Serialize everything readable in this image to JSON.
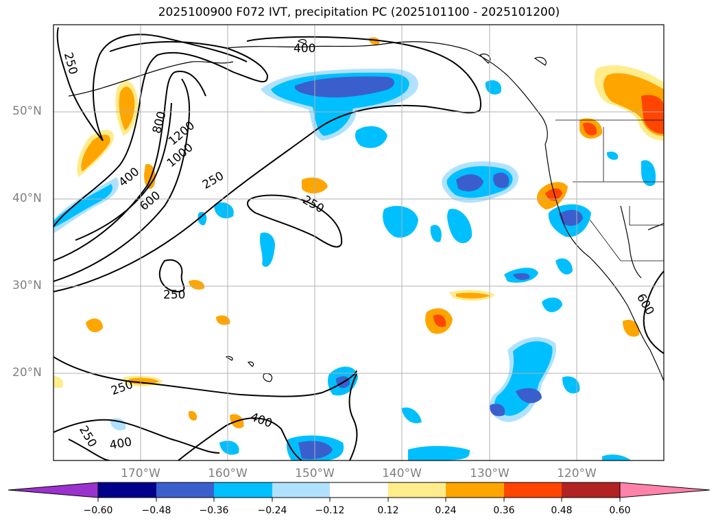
{
  "title": "2025100900 F072 IVT, precipitation PC (2025101100 - 2025101200)",
  "lat_labels": [
    {
      "value": 50,
      "text": "50°N"
    },
    {
      "value": 40,
      "text": "40°N"
    },
    {
      "value": 30,
      "text": "30°N"
    },
    {
      "value": 20,
      "text": "20°N"
    }
  ],
  "lon_labels": [
    {
      "value": -170,
      "text": "170°W"
    },
    {
      "value": -160,
      "text": "160°W"
    },
    {
      "value": -150,
      "text": "150°W"
    },
    {
      "value": -140,
      "text": "140°W"
    },
    {
      "value": -130,
      "text": "130°W"
    },
    {
      "value": -120,
      "text": "120°W"
    }
  ],
  "extent": {
    "lon": [
      -180,
      -110
    ],
    "lat": [
      10,
      60
    ]
  },
  "contour_labels": [
    "250",
    "400",
    "600",
    "800",
    "1000",
    "1200",
    "250",
    "250",
    "250",
    "250",
    "250",
    "400",
    "400",
    "600"
  ],
  "colorbar": {
    "ticks": [
      "−0.60",
      "−0.48",
      "−0.36",
      "−0.24",
      "−0.12",
      "0.12",
      "0.24",
      "0.36",
      "0.48",
      "0.60"
    ],
    "colors": [
      "#9a32cd",
      "#00008b",
      "#3a5fcd",
      "#00bfff",
      "#b0e2ff",
      "#ffffff",
      "#ffec8b",
      "#ffa500",
      "#ff4500",
      "#b22222",
      "#ff82ab"
    ]
  },
  "colors": {
    "neg_strong": "#3a5fcd",
    "neg_mid": "#00bfff",
    "neg_weak": "#b0e2ff",
    "pos_weak": "#ffec8b",
    "pos_mid": "#ffa500",
    "pos_strong": "#ff4500",
    "grid": "#b0b0b0"
  }
}
